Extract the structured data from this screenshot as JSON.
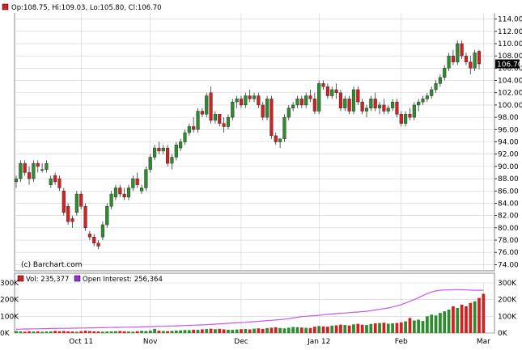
{
  "header": {
    "ohlc_text": "Op:108.75, Hi:109.03, Lo:105.80, Cl:106.70",
    "watermark": "(c) Barchart.com",
    "last_price_label": "106.70"
  },
  "volume_header": {
    "vol_text": "Vol: 235,377",
    "oi_text": "Open Interest: 256,364"
  },
  "colors": {
    "up": "#2e8b2e",
    "down": "#d42020",
    "oi_line": "#cc55ee",
    "grid": "#d0d0d0",
    "last_price_box": "#000000"
  },
  "chart_data": [
    {
      "type": "candlestick",
      "ylim": [
        73,
        115
      ],
      "y_ticks": [
        "74.00",
        "76.00",
        "78.00",
        "80.00",
        "82.00",
        "84.00",
        "86.00",
        "88.00",
        "90.00",
        "92.00",
        "94.00",
        "96.00",
        "98.00",
        "100.00",
        "102.00",
        "104.00",
        "106.00",
        "108.00",
        "110.00",
        "112.00",
        "114.00"
      ],
      "x_ticks": [
        {
          "label": "Oct 11",
          "index": 15
        },
        {
          "label": "Nov",
          "index": 31
        },
        {
          "label": "Dec",
          "index": 52
        },
        {
          "label": "Jan 12",
          "index": 70
        },
        {
          "label": "Feb",
          "index": 89
        },
        {
          "label": "Mar",
          "index": 108
        }
      ],
      "ohlc": [
        [
          87.5,
          88.5,
          86.5,
          88.0
        ],
        [
          88.0,
          91.0,
          87.5,
          90.5
        ],
        [
          90.5,
          91.0,
          88.5,
          89.0
        ],
        [
          89.0,
          90.0,
          87.0,
          88.0
        ],
        [
          88.0,
          91.0,
          87.5,
          90.5
        ],
        [
          90.5,
          91.0,
          89.0,
          90.0
        ],
        [
          89.5,
          90.5,
          89.0,
          89.5
        ],
        [
          89.5,
          91.0,
          89.0,
          90.5
        ],
        [
          87.0,
          88.5,
          86.5,
          88.0
        ],
        [
          88.5,
          89.0,
          87.0,
          87.5
        ],
        [
          88.0,
          88.5,
          86.0,
          86.5
        ],
        [
          86.0,
          86.5,
          82.0,
          82.5
        ],
        [
          83.5,
          84.0,
          80.5,
          81.0
        ],
        [
          81.5,
          82.0,
          80.0,
          81.0
        ],
        [
          82.5,
          86.0,
          82.0,
          85.5
        ],
        [
          85.5,
          86.0,
          83.0,
          83.5
        ],
        [
          83.5,
          84.0,
          79.5,
          80.0
        ],
        [
          79.0,
          79.5,
          78.0,
          78.5
        ],
        [
          78.5,
          79.0,
          77.0,
          77.5
        ],
        [
          77.5,
          78.0,
          76.5,
          77.0
        ],
        [
          78.5,
          81.0,
          78.0,
          80.5
        ],
        [
          80.5,
          84.0,
          80.0,
          83.5
        ],
        [
          83.5,
          86.0,
          83.0,
          85.5
        ],
        [
          85.0,
          87.0,
          84.5,
          86.5
        ],
        [
          86.5,
          87.0,
          85.0,
          85.5
        ],
        [
          85.5,
          86.5,
          84.5,
          85.0
        ],
        [
          85.0,
          87.0,
          84.5,
          86.5
        ],
        [
          86.5,
          88.5,
          86.0,
          88.0
        ],
        [
          88.0,
          89.0,
          86.5,
          87.0
        ],
        [
          86.0,
          87.0,
          85.5,
          86.5
        ],
        [
          86.5,
          90.0,
          86.0,
          89.5
        ],
        [
          89.5,
          92.0,
          89.0,
          91.5
        ],
        [
          91.5,
          93.5,
          91.0,
          93.0
        ],
        [
          93.0,
          94.0,
          92.0,
          92.5
        ],
        [
          92.5,
          93.5,
          92.0,
          93.0
        ],
        [
          93.0,
          93.5,
          90.0,
          90.5
        ],
        [
          90.5,
          92.0,
          89.5,
          91.5
        ],
        [
          91.5,
          94.0,
          91.0,
          93.5
        ],
        [
          93.0,
          94.5,
          92.5,
          94.0
        ],
        [
          94.0,
          96.0,
          93.5,
          95.5
        ],
        [
          95.5,
          97.0,
          95.0,
          96.5
        ],
        [
          96.5,
          98.0,
          95.5,
          96.0
        ],
        [
          96.0,
          99.5,
          95.5,
          99.0
        ],
        [
          99.0,
          99.5,
          98.0,
          98.5
        ],
        [
          98.5,
          102.0,
          98.0,
          101.5
        ],
        [
          102.0,
          103.0,
          97.0,
          97.5
        ],
        [
          97.5,
          99.0,
          97.0,
          98.5
        ],
        [
          98.5,
          98.5,
          96.5,
          97.0
        ],
        [
          97.0,
          98.0,
          95.5,
          96.5
        ],
        [
          96.5,
          98.5,
          96.0,
          98.0
        ],
        [
          98.0,
          101.0,
          97.5,
          100.5
        ],
        [
          100.5,
          101.5,
          99.5,
          101.0
        ],
        [
          101.0,
          101.5,
          99.5,
          100.0
        ],
        [
          100.0,
          102.0,
          99.5,
          101.5
        ],
        [
          101.5,
          102.5,
          100.5,
          101.0
        ],
        [
          101.0,
          102.0,
          100.5,
          101.5
        ],
        [
          101.5,
          102.0,
          99.5,
          100.0
        ],
        [
          100.0,
          100.5,
          97.5,
          98.0
        ],
        [
          98.0,
          101.5,
          97.5,
          101.0
        ],
        [
          101.0,
          101.5,
          94.5,
          95.0
        ],
        [
          95.0,
          95.5,
          93.5,
          94.0
        ],
        [
          94.0,
          94.5,
          93.0,
          94.5
        ],
        [
          94.5,
          98.5,
          94.0,
          98.0
        ],
        [
          98.0,
          100.0,
          97.5,
          99.5
        ],
        [
          99.5,
          100.5,
          99.0,
          100.0
        ],
        [
          100.0,
          101.5,
          99.5,
          101.0
        ],
        [
          101.0,
          101.5,
          99.5,
          100.0
        ],
        [
          100.0,
          102.0,
          99.5,
          101.5
        ],
        [
          101.5,
          102.5,
          100.5,
          101.0
        ],
        [
          101.0,
          102.0,
          98.5,
          99.0
        ],
        [
          99.0,
          104.0,
          98.5,
          103.5
        ],
        [
          103.5,
          104.0,
          102.5,
          103.0
        ],
        [
          103.0,
          103.5,
          101.0,
          101.5
        ],
        [
          101.5,
          103.0,
          101.0,
          102.5
        ],
        [
          102.5,
          103.5,
          101.0,
          102.0
        ],
        [
          102.0,
          102.5,
          99.0,
          99.5
        ],
        [
          99.5,
          101.5,
          99.0,
          101.0
        ],
        [
          101.0,
          101.5,
          98.5,
          99.0
        ],
        [
          99.0,
          103.0,
          98.5,
          102.5
        ],
        [
          102.5,
          103.0,
          100.0,
          100.5
        ],
        [
          100.5,
          101.0,
          98.5,
          99.0
        ],
        [
          99.0,
          100.0,
          98.0,
          99.5
        ],
        [
          99.5,
          101.5,
          99.0,
          101.0
        ],
        [
          101.0,
          102.0,
          99.0,
          99.5
        ],
        [
          99.5,
          100.5,
          98.5,
          100.0
        ],
        [
          100.0,
          101.0,
          98.5,
          99.0
        ],
        [
          99.0,
          100.0,
          98.5,
          99.5
        ],
        [
          99.5,
          101.0,
          99.0,
          100.5
        ],
        [
          100.5,
          101.0,
          98.0,
          98.5
        ],
        [
          98.5,
          99.0,
          96.5,
          97.0
        ],
        [
          97.0,
          99.0,
          96.5,
          98.5
        ],
        [
          98.5,
          99.5,
          97.5,
          98.0
        ],
        [
          98.0,
          100.5,
          97.5,
          100.0
        ],
        [
          100.0,
          101.0,
          99.0,
          100.5
        ],
        [
          100.5,
          101.5,
          100.0,
          101.0
        ],
        [
          101.0,
          102.0,
          100.5,
          101.5
        ],
        [
          101.5,
          103.0,
          101.0,
          102.5
        ],
        [
          102.5,
          104.0,
          102.0,
          103.5
        ],
        [
          103.5,
          105.0,
          103.0,
          104.5
        ],
        [
          104.5,
          106.5,
          104.0,
          106.0
        ],
        [
          106.0,
          108.5,
          105.5,
          108.0
        ],
        [
          108.0,
          109.0,
          106.5,
          107.0
        ],
        [
          107.0,
          110.5,
          106.5,
          110.0
        ],
        [
          110.0,
          110.5,
          107.5,
          108.0
        ],
        [
          108.0,
          108.5,
          106.5,
          107.0
        ],
        [
          107.0,
          108.0,
          105.0,
          106.0
        ],
        [
          106.0,
          109.0,
          105.5,
          108.5
        ],
        [
          108.75,
          109.03,
          105.8,
          106.7
        ]
      ]
    },
    {
      "type": "bar",
      "series": [
        {
          "name": "Vol",
          "values": [
            12,
            10,
            8,
            11,
            9,
            10,
            8,
            9,
            10,
            13,
            11,
            12,
            10,
            9,
            8,
            11,
            14,
            12,
            10,
            9,
            8,
            9,
            10,
            11,
            12,
            10,
            9,
            8,
            11,
            13,
            12,
            15,
            25,
            14,
            12,
            11,
            13,
            15,
            16,
            18,
            17,
            20,
            19,
            22,
            24,
            26,
            23,
            25,
            22,
            20,
            19,
            21,
            23,
            24,
            22,
            26,
            28,
            25,
            30,
            32,
            34,
            30,
            28,
            32,
            36,
            35,
            33,
            31,
            30,
            38,
            42,
            40,
            38,
            44,
            46,
            50,
            48,
            45,
            52,
            55,
            50,
            48,
            54,
            58,
            60,
            62,
            56,
            58,
            60,
            64,
            70,
            90,
            75,
            80,
            72,
            100,
            110,
            105,
            120,
            130,
            140,
            160,
            150,
            170,
            160,
            180,
            190,
            210,
            235
          ]
        },
        {
          "name": "Open Interest",
          "values": [
            22,
            23,
            24,
            24,
            25,
            25,
            26,
            26,
            27,
            27,
            28,
            28,
            28,
            29,
            29,
            30,
            30,
            31,
            31,
            32,
            32,
            33,
            33,
            34,
            34,
            35,
            35,
            36,
            36,
            37,
            38,
            38,
            39,
            40,
            40,
            41,
            42,
            43,
            44,
            45,
            46,
            47,
            48,
            49,
            50,
            52,
            53,
            55,
            56,
            58,
            60,
            61,
            63,
            64,
            66,
            68,
            70,
            72,
            74,
            76,
            78,
            80,
            83,
            86,
            90,
            94,
            98,
            100,
            102,
            104,
            106,
            110,
            112,
            114,
            116,
            118,
            120,
            122,
            124,
            126,
            128,
            130,
            134,
            138,
            142,
            146,
            150,
            156,
            162,
            170,
            180,
            190,
            200,
            212,
            224,
            236,
            246,
            252,
            256,
            258,
            258,
            260,
            260,
            259,
            258,
            257,
            256,
            256,
            256
          ]
        }
      ],
      "y_ticks_left": [
        "0K",
        "100K",
        "200K",
        "300K"
      ],
      "y_ticks_right": [
        "0K",
        "100K",
        "200K",
        "300K"
      ],
      "ylim": [
        0,
        300
      ]
    }
  ]
}
